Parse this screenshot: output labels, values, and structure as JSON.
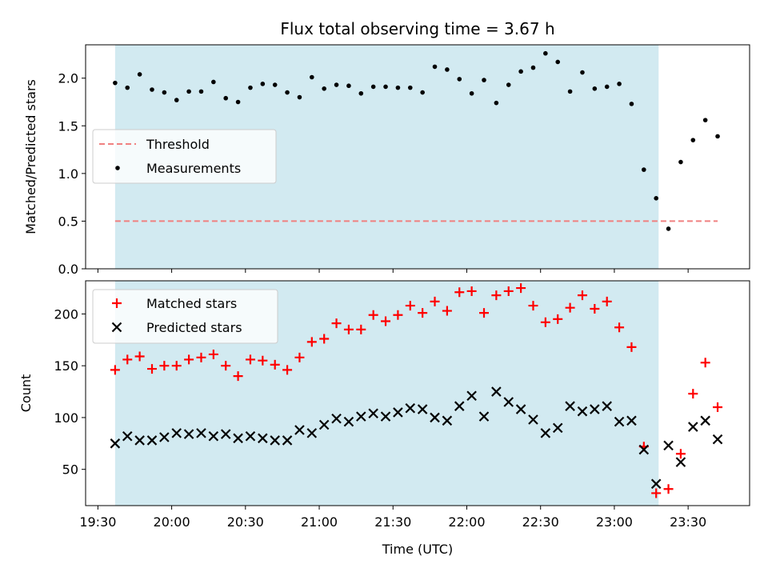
{
  "chart_data": [
    {
      "type": "scatter",
      "title": "Flux total observing time = 3.67 h",
      "xlabel": "",
      "ylabel": "Matched/Predicted stars",
      "xlim": [
        "19:25",
        "23:55"
      ],
      "ylim": [
        0,
        2.35
      ],
      "y_ticks": [
        0.0,
        0.5,
        1.0,
        1.5,
        2.0
      ],
      "y_tick_labels": [
        "0.0",
        "0.5",
        "1.0",
        "1.5",
        "2.0"
      ],
      "grid": false,
      "shaded_interval": {
        "start": "19:37",
        "end": "23:18",
        "color": "#add8e6"
      },
      "legend": {
        "placement": "center-left"
      },
      "series": [
        {
          "name": "Threshold",
          "kind": "dashed-line",
          "color": "#f08080",
          "x": [
            "19:37",
            "23:42"
          ],
          "y": [
            0.5,
            0.5
          ]
        },
        {
          "name": "Measurements",
          "kind": "points",
          "color": "#000000",
          "x": [
            "19:37",
            "19:42",
            "19:47",
            "19:52",
            "19:57",
            "20:02",
            "20:07",
            "20:12",
            "20:17",
            "20:22",
            "20:27",
            "20:32",
            "20:37",
            "20:42",
            "20:47",
            "20:52",
            "20:57",
            "21:02",
            "21:07",
            "21:12",
            "21:17",
            "21:22",
            "21:27",
            "21:32",
            "21:37",
            "21:42",
            "21:47",
            "21:52",
            "21:57",
            "22:02",
            "22:07",
            "22:12",
            "22:17",
            "22:22",
            "22:27",
            "22:32",
            "22:37",
            "22:42",
            "22:47",
            "22:52",
            "22:57",
            "23:02",
            "23:07",
            "23:12",
            "23:17",
            "23:22",
            "23:27",
            "23:32",
            "23:37",
            "23:42"
          ],
          "y": [
            1.95,
            1.9,
            2.04,
            1.88,
            1.85,
            1.77,
            1.86,
            1.86,
            1.96,
            1.79,
            1.75,
            1.9,
            1.94,
            1.93,
            1.85,
            1.8,
            2.01,
            1.89,
            1.93,
            1.92,
            1.84,
            1.91,
            1.91,
            1.9,
            1.9,
            1.85,
            2.12,
            2.09,
            1.99,
            1.84,
            1.98,
            1.74,
            1.93,
            2.07,
            2.11,
            2.26,
            2.17,
            1.86,
            2.06,
            1.89,
            1.91,
            1.94,
            1.73,
            1.04,
            0.74,
            0.42,
            1.12,
            1.35,
            1.56,
            1.39
          ]
        }
      ]
    },
    {
      "type": "scatter",
      "title": "",
      "xlabel": "Time (UTC)",
      "ylabel": "Count",
      "xlim": [
        "19:25",
        "23:55"
      ],
      "ylim": [
        15,
        232
      ],
      "y_ticks": [
        50,
        100,
        150,
        200
      ],
      "y_tick_labels": [
        "50",
        "100",
        "150",
        "200"
      ],
      "x_ticks": [
        "19:30",
        "20:00",
        "20:30",
        "21:00",
        "21:30",
        "22:00",
        "22:30",
        "23:00",
        "23:30"
      ],
      "grid": false,
      "shaded_interval": {
        "start": "19:37",
        "end": "23:18",
        "color": "#add8e6"
      },
      "legend": {
        "placement": "top-left"
      },
      "series": [
        {
          "name": "Matched stars",
          "marker": "plus",
          "color": "#ff0000",
          "x": [
            "19:37",
            "19:42",
            "19:47",
            "19:52",
            "19:57",
            "20:02",
            "20:07",
            "20:12",
            "20:17",
            "20:22",
            "20:27",
            "20:32",
            "20:37",
            "20:42",
            "20:47",
            "20:52",
            "20:57",
            "21:02",
            "21:07",
            "21:12",
            "21:17",
            "21:22",
            "21:27",
            "21:32",
            "21:37",
            "21:42",
            "21:47",
            "21:52",
            "21:57",
            "22:02",
            "22:07",
            "22:12",
            "22:17",
            "22:22",
            "22:27",
            "22:32",
            "22:37",
            "22:42",
            "22:47",
            "22:52",
            "22:57",
            "23:02",
            "23:07",
            "23:12",
            "23:17",
            "23:22",
            "23:27",
            "23:32",
            "23:37",
            "23:42"
          ],
          "y": [
            146,
            156,
            159,
            147,
            150,
            150,
            156,
            158,
            161,
            150,
            140,
            156,
            155,
            151,
            146,
            158,
            173,
            176,
            191,
            185,
            185,
            199,
            193,
            199,
            208,
            201,
            212,
            203,
            221,
            222,
            201,
            218,
            222,
            225,
            208,
            192,
            195,
            206,
            218,
            205,
            212,
            187,
            168,
            72,
            27,
            31,
            65,
            123,
            153,
            110
          ]
        },
        {
          "name": "Predicted stars",
          "marker": "x",
          "color": "#000000",
          "x": [
            "19:37",
            "19:42",
            "19:47",
            "19:52",
            "19:57",
            "20:02",
            "20:07",
            "20:12",
            "20:17",
            "20:22",
            "20:27",
            "20:32",
            "20:37",
            "20:42",
            "20:47",
            "20:52",
            "20:57",
            "21:02",
            "21:07",
            "21:12",
            "21:17",
            "21:22",
            "21:27",
            "21:32",
            "21:37",
            "21:42",
            "21:47",
            "21:52",
            "21:57",
            "22:02",
            "22:07",
            "22:12",
            "22:17",
            "22:22",
            "22:27",
            "22:32",
            "22:37",
            "22:42",
            "22:47",
            "22:52",
            "22:57",
            "23:02",
            "23:07",
            "23:12",
            "23:17",
            "23:22",
            "23:27",
            "23:32",
            "23:37",
            "23:42"
          ],
          "y": [
            75,
            82,
            78,
            78,
            81,
            85,
            84,
            85,
            82,
            84,
            80,
            82,
            80,
            78,
            78,
            88,
            85,
            93,
            99,
            96,
            101,
            104,
            101,
            105,
            109,
            108,
            100,
            97,
            111,
            121,
            101,
            125,
            115,
            108,
            98,
            85,
            90,
            111,
            106,
            108,
            111,
            96,
            97,
            69,
            36,
            73,
            57,
            91,
            97,
            79
          ]
        }
      ]
    }
  ]
}
